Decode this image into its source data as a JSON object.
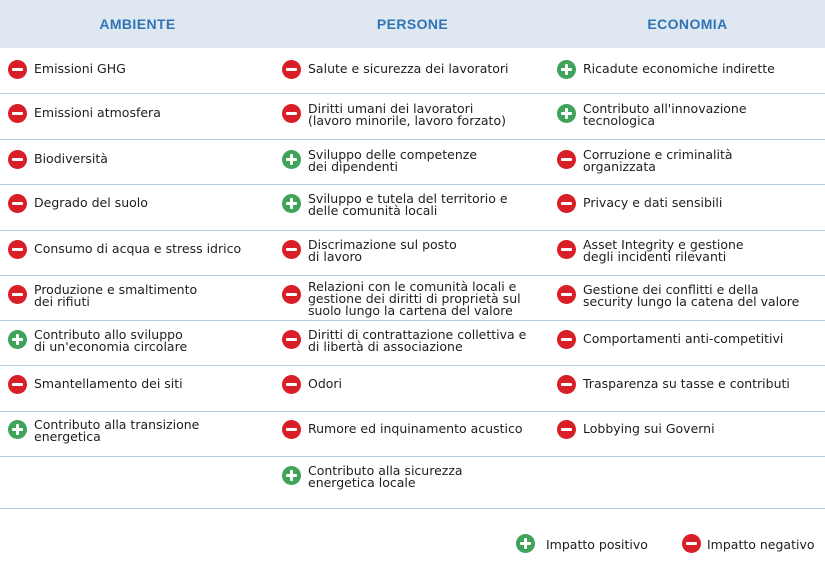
{
  "headers": [
    "AMBIENTE",
    "PERSONE",
    "ECONOMIA"
  ],
  "colors": {
    "header_bg": "#dfe7f1",
    "header_text": "#2f74b5",
    "positive": "#3fa35a",
    "negative": "#d81e26",
    "divider": "#b7cde3"
  },
  "columns": [
    {
      "name": "AMBIENTE",
      "items": [
        {
          "impact": "negative",
          "icon": "minus-circle-icon",
          "text": "Emissioni GHG"
        },
        {
          "impact": "negative",
          "icon": "minus-circle-icon",
          "text": "Emissioni atmosfera"
        },
        {
          "impact": "negative",
          "icon": "minus-circle-icon",
          "text": "Biodiversità"
        },
        {
          "impact": "negative",
          "icon": "minus-circle-icon",
          "text": "Degrado del suolo"
        },
        {
          "impact": "negative",
          "icon": "minus-circle-icon",
          "text": "Consumo di acqua e stress idrico"
        },
        {
          "impact": "negative",
          "icon": "minus-circle-icon",
          "text": "Produzione e smaltimento\n dei rifiuti"
        },
        {
          "impact": "positive",
          "icon": "plus-circle-icon",
          "text": "Contributo allo sviluppo\n di un'economia circolare"
        },
        {
          "impact": "negative",
          "icon": "minus-circle-icon",
          "text": "Smantellamento dei siti"
        },
        {
          "impact": "positive",
          "icon": "plus-circle-icon",
          "text": "Contributo alla transizione\nenergetica"
        }
      ]
    },
    {
      "name": "PERSONE",
      "items": [
        {
          "impact": "negative",
          "icon": "minus-circle-icon",
          "text": "Salute e sicurezza dei lavoratori"
        },
        {
          "impact": "negative",
          "icon": "minus-circle-icon",
          "text": "Diritti umani dei lavoratori\n(lavoro minorile, lavoro forzato)"
        },
        {
          "impact": "positive",
          "icon": "plus-circle-icon",
          "text": "Sviluppo delle competenze\n dei dipendenti"
        },
        {
          "impact": "positive",
          "icon": "plus-circle-icon",
          "text": "Sviluppo e tutela del territorio e\ndelle comunità locali"
        },
        {
          "impact": "negative",
          "icon": "minus-circle-icon",
          "text": "Discrimazione sul posto\n di lavoro"
        },
        {
          "impact": "negative",
          "icon": "minus-circle-icon",
          "text": "Relazioni con le comunità locali e\ngestione dei diritti di proprietà sul\nsuolo lungo la cartena del valore"
        },
        {
          "impact": "negative",
          "icon": "minus-circle-icon",
          "text": "Diritti di contrattazione collettiva e\n di libertà di associazione"
        },
        {
          "impact": "negative",
          "icon": "minus-circle-icon",
          "text": "Odori"
        },
        {
          "impact": "negative",
          "icon": "minus-circle-icon",
          "text": "Rumore ed inquinamento acustico"
        },
        {
          "impact": "positive",
          "icon": "plus-circle-icon",
          "text": "Contributo alla sicurezza\nenergetica locale"
        }
      ]
    },
    {
      "name": "ECONOMIA",
      "items": [
        {
          "impact": "positive",
          "icon": "plus-circle-icon",
          "text": "Ricadute economiche indirette"
        },
        {
          "impact": "positive",
          "icon": "plus-circle-icon",
          "text": "Contributo all'innovazione\ntecnologica"
        },
        {
          "impact": "negative",
          "icon": "minus-circle-icon",
          "text": "Corruzione e criminalità\norganizzata"
        },
        {
          "impact": "negative",
          "icon": "minus-circle-icon",
          "text": "Privacy e dati sensibili"
        },
        {
          "impact": "negative",
          "icon": "minus-circle-icon",
          "text": "Asset Integrity e gestione\ndegli incidenti rilevanti"
        },
        {
          "impact": "negative",
          "icon": "minus-circle-icon",
          "text": "Gestione dei conflitti e della\nsecurity lungo la catena del valore"
        },
        {
          "impact": "negative",
          "icon": "minus-circle-icon",
          "text": "Comportamenti anti-competitivi"
        },
        {
          "impact": "negative",
          "icon": "minus-circle-icon",
          "text": "Trasparenza su tasse e contributi"
        },
        {
          "impact": "negative",
          "icon": "minus-circle-icon",
          "text": "Lobbying sui Governi"
        }
      ]
    }
  ],
  "legend": {
    "positive": {
      "icon": "plus-circle-icon",
      "label": "Impatto positivo"
    },
    "negative": {
      "icon": "minus-circle-icon",
      "label": "Impatto negativo"
    }
  }
}
